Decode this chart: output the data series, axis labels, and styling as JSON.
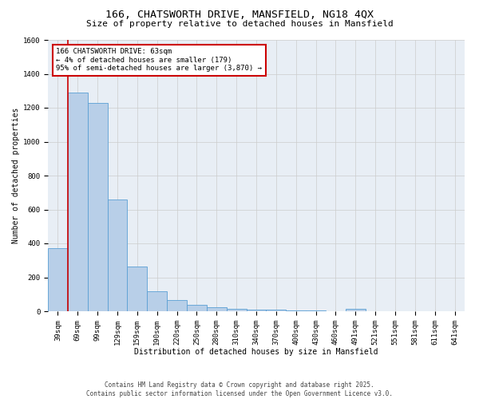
{
  "title_line1": "166, CHATSWORTH DRIVE, MANSFIELD, NG18 4QX",
  "title_line2": "Size of property relative to detached houses in Mansfield",
  "xlabel": "Distribution of detached houses by size in Mansfield",
  "ylabel": "Number of detached properties",
  "bar_labels": [
    "39sqm",
    "69sqm",
    "99sqm",
    "129sqm",
    "159sqm",
    "190sqm",
    "220sqm",
    "250sqm",
    "280sqm",
    "310sqm",
    "340sqm",
    "370sqm",
    "400sqm",
    "430sqm",
    "460sqm",
    "491sqm",
    "521sqm",
    "551sqm",
    "581sqm",
    "611sqm",
    "641sqm"
  ],
  "bar_values": [
    370,
    1290,
    1230,
    660,
    265,
    120,
    68,
    38,
    25,
    15,
    10,
    8,
    5,
    5,
    0,
    12,
    0,
    0,
    0,
    0,
    0
  ],
  "bar_color": "#b8cfe8",
  "bar_edge_color": "#5a9fd4",
  "annotation_box_text": "166 CHATSWORTH DRIVE: 63sqm\n← 4% of detached houses are smaller (179)\n95% of semi-detached houses are larger (3,870) →",
  "annotation_box_color": "#ffffff",
  "annotation_box_edge_color": "#cc0000",
  "vline_color": "#cc0000",
  "ylim": [
    0,
    1600
  ],
  "yticks": [
    0,
    200,
    400,
    600,
    800,
    1000,
    1200,
    1400,
    1600
  ],
  "grid_color": "#cccccc",
  "bg_color": "#e8eef5",
  "footer_line1": "Contains HM Land Registry data © Crown copyright and database right 2025.",
  "footer_line2": "Contains public sector information licensed under the Open Government Licence v3.0.",
  "title_fontsize": 9.5,
  "subtitle_fontsize": 8,
  "axis_label_fontsize": 7,
  "tick_fontsize": 6.5,
  "annotation_fontsize": 6.5,
  "footer_fontsize": 5.5
}
